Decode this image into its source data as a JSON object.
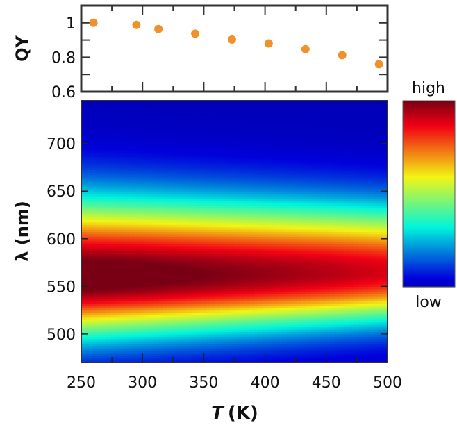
{
  "chart_data": [
    {
      "type": "scatter",
      "ylabel": "QY",
      "xlim": [
        250,
        500
      ],
      "ylim": [
        0.6,
        1.1
      ],
      "yticks": [
        "0.6",
        "0.8",
        "1"
      ],
      "marker_color": "#f0922c",
      "x": [
        260,
        295,
        313,
        343,
        373,
        403,
        433,
        463,
        493
      ],
      "y": [
        1.0,
        0.988,
        0.964,
        0.937,
        0.903,
        0.88,
        0.847,
        0.812,
        0.76
      ]
    },
    {
      "type": "heatmap",
      "xlabel_italic": "T",
      "xlabel_unit": "(K)",
      "ylabel": "λ (nm)",
      "xlim": [
        250,
        500
      ],
      "ylim": [
        470,
        745
      ],
      "xticks": [
        "250",
        "300",
        "350",
        "400",
        "450",
        "500"
      ],
      "yticks": [
        "500",
        "550",
        "600",
        "650",
        "700"
      ],
      "colormap": "jet",
      "colorbar": {
        "high_label": "high",
        "low_label": "low"
      },
      "emission_profile": {
        "T": [
          250,
          300,
          350,
          400,
          450,
          500
        ],
        "peak_nm": [
          560,
          561,
          562,
          563,
          564,
          565
        ],
        "relative_peak_intensity": [
          0.97,
          0.95,
          0.92,
          0.89,
          0.86,
          0.82
        ]
      }
    }
  ]
}
